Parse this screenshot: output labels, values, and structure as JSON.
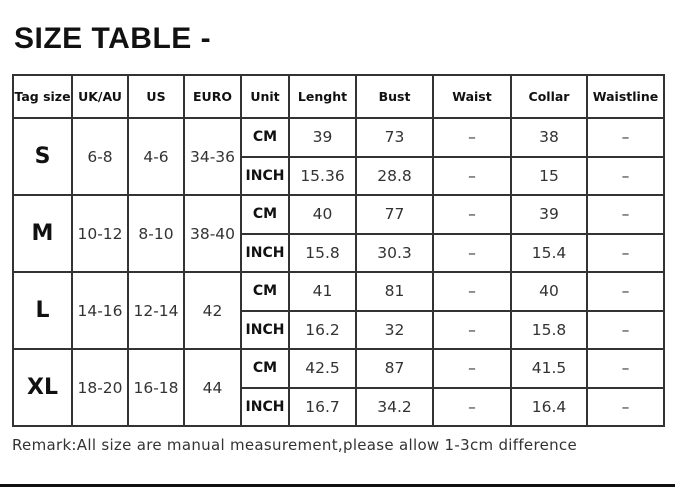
{
  "title": "SIZE TABLE -",
  "headers": [
    "Tag size",
    "UK/AU",
    "US",
    "EURO",
    "Unit",
    "Lenght",
    "Bust",
    "Waist",
    "Collar",
    "Waistline"
  ],
  "sizes": [
    {
      "tag": "S",
      "uk": "6-8",
      "us": "4-6",
      "euro": "34-36",
      "cm": {
        "unit": "CM",
        "length": "39",
        "bust": "73",
        "waist": "–",
        "collar": "38",
        "waistline": "–"
      },
      "inch": {
        "unit": "INCH",
        "length": "15.36",
        "bust": "28.8",
        "waist": "–",
        "collar": "15",
        "waistline": "–"
      }
    },
    {
      "tag": "M",
      "uk": "10-12",
      "us": "8-10",
      "euro": "38-40",
      "cm": {
        "unit": "CM",
        "length": "40",
        "bust": "77",
        "waist": "–",
        "collar": "39",
        "waistline": "–"
      },
      "inch": {
        "unit": "INCH",
        "length": "15.8",
        "bust": "30.3",
        "waist": "–",
        "collar": "15.4",
        "waistline": "–"
      }
    },
    {
      "tag": "L",
      "uk": "14-16",
      "us": "12-14",
      "euro": "42",
      "cm": {
        "unit": "CM",
        "length": "41",
        "bust": "81",
        "waist": "–",
        "collar": "40",
        "waistline": "–"
      },
      "inch": {
        "unit": "INCH",
        "length": "16.2",
        "bust": "32",
        "waist": "–",
        "collar": "15.8",
        "waistline": "–"
      }
    },
    {
      "tag": "XL",
      "uk": "18-20",
      "us": "16-18",
      "euro": "44",
      "cm": {
        "unit": "CM",
        "length": "42.5",
        "bust": "87",
        "waist": "–",
        "collar": "41.5",
        "waistline": "–"
      },
      "inch": {
        "unit": "INCH",
        "length": "16.7",
        "bust": "34.2",
        "waist": "–",
        "collar": "16.4",
        "waistline": "–"
      }
    }
  ],
  "remark": "Remark:All size are manual measurement,please allow 1-3cm difference"
}
